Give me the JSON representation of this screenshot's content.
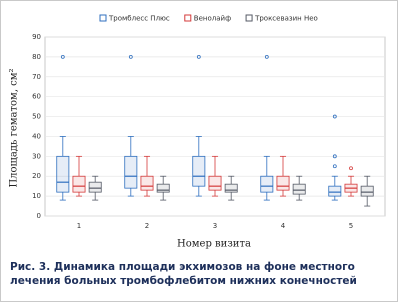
{
  "chart_data": {
    "type": "box",
    "xlabel": "Номер визита",
    "ylabel": "Площадь гематом, см²",
    "categories": [
      "1",
      "2",
      "3",
      "4",
      "5"
    ],
    "ylim": [
      0,
      90
    ],
    "yticks": [
      0,
      10,
      20,
      30,
      40,
      50,
      60,
      70,
      80,
      90
    ],
    "grid": true,
    "series": [
      {
        "name": "Тромблесс Плюс",
        "color": "#2f6fbf",
        "boxes": [
          {
            "min": 8,
            "q1": 12,
            "median": 17,
            "q3": 30,
            "max": 40,
            "outliers": [
              80
            ]
          },
          {
            "min": 10,
            "q1": 14,
            "median": 20,
            "q3": 30,
            "max": 40,
            "outliers": [
              80
            ]
          },
          {
            "min": 10,
            "q1": 15,
            "median": 20,
            "q3": 30,
            "max": 40,
            "outliers": [
              80
            ]
          },
          {
            "min": 8,
            "q1": 12,
            "median": 15,
            "q3": 20,
            "max": 30,
            "outliers": [
              80
            ]
          },
          {
            "min": 8,
            "q1": 10,
            "median": 12,
            "q3": 15,
            "max": 20,
            "outliers": [
              25,
              30,
              50
            ]
          }
        ]
      },
      {
        "name": "Венолайф",
        "color": "#d43a3a",
        "boxes": [
          {
            "min": 10,
            "q1": 12,
            "median": 15,
            "q3": 20,
            "max": 30,
            "outliers": []
          },
          {
            "min": 10,
            "q1": 13,
            "median": 15,
            "q3": 20,
            "max": 30,
            "outliers": []
          },
          {
            "min": 10,
            "q1": 13,
            "median": 15,
            "q3": 20,
            "max": 30,
            "outliers": []
          },
          {
            "min": 10,
            "q1": 13,
            "median": 15,
            "q3": 20,
            "max": 30,
            "outliers": []
          },
          {
            "min": 10,
            "q1": 12,
            "median": 14,
            "q3": 16,
            "max": 20,
            "outliers": [
              24
            ]
          }
        ]
      },
      {
        "name": "Троксевазин Нео",
        "color": "#555a66",
        "boxes": [
          {
            "min": 8,
            "q1": 12,
            "median": 14,
            "q3": 17,
            "max": 20,
            "outliers": []
          },
          {
            "min": 8,
            "q1": 12,
            "median": 13,
            "q3": 16,
            "max": 20,
            "outliers": []
          },
          {
            "min": 8,
            "q1": 12,
            "median": 13,
            "q3": 16,
            "max": 20,
            "outliers": []
          },
          {
            "min": 8,
            "q1": 11,
            "median": 13,
            "q3": 16,
            "max": 20,
            "outliers": []
          },
          {
            "min": 5,
            "q1": 10,
            "median": 12,
            "q3": 15,
            "max": 20,
            "outliers": []
          }
        ]
      }
    ]
  },
  "caption": "Рис. 3. Динамика площади экхимозов на фоне местного лечения больных тромбофлебитом нижних конечностей"
}
